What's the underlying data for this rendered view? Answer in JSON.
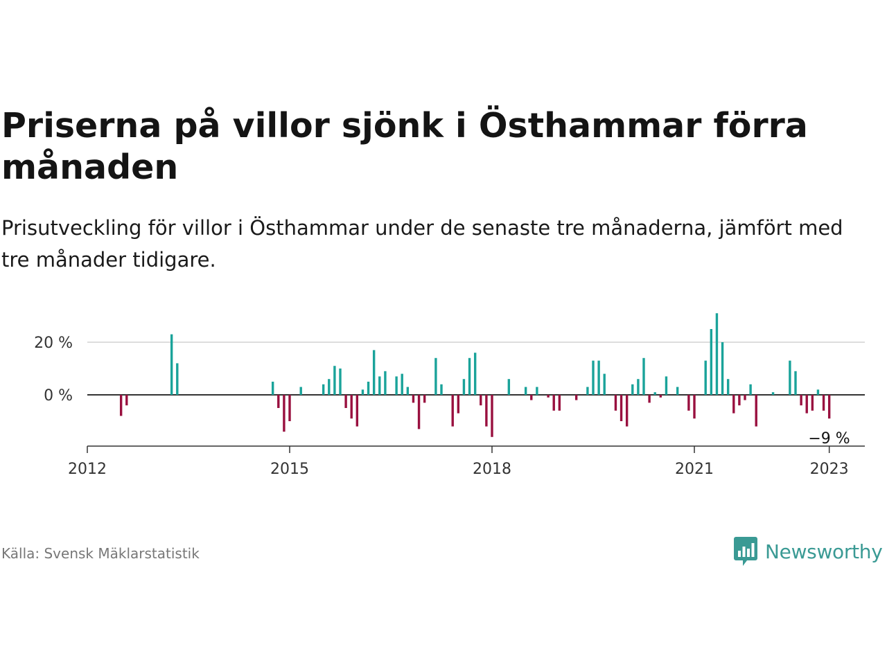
{
  "header": {
    "title": "Priserna på villor sjönk i Östhammar förra månaden",
    "subtitle": "Prisutveckling för villor i Östhammar under de senaste tre månaderna, jämfört med tre månader tidigare."
  },
  "footer": {
    "source": "Källa: Svensk Mäklarstatistik",
    "brand": "Newsworthy"
  },
  "colors": {
    "positive": "#1aa39a",
    "negative": "#99103f",
    "brand": "#3a9a94",
    "gridline": "#dddddd",
    "baseline": "#333333"
  },
  "chart_data": {
    "type": "bar",
    "title": "Priserna på villor sjönk i Östhammar förra månaden",
    "subtitle": "Prisutveckling för villor i Östhammar under de senaste tre månaderna, jämfört med tre månader tidigare.",
    "xlabel": "",
    "ylabel": "",
    "unit": "%",
    "x_ticks": [
      "2012",
      "2015",
      "2018",
      "2021",
      "2023"
    ],
    "y_ticks": [
      {
        "value": 20,
        "label": "20 %"
      },
      {
        "value": 0,
        "label": "0 %"
      }
    ],
    "ylim": [
      -19,
      30
    ],
    "grid": true,
    "annotation": {
      "date": "2023-01",
      "value": -9,
      "label": "−9 %"
    },
    "series": [
      {
        "values": [
          {
            "date": "2012-07",
            "value": -8
          },
          {
            "date": "2012-08",
            "value": -4
          },
          {
            "date": "2013-04",
            "value": 23
          },
          {
            "date": "2013-05",
            "value": 12
          },
          {
            "date": "2014-10",
            "value": 5
          },
          {
            "date": "2014-11",
            "value": -5
          },
          {
            "date": "2014-12",
            "value": -14
          },
          {
            "date": "2015-01",
            "value": -10
          },
          {
            "date": "2015-03",
            "value": 3
          },
          {
            "date": "2015-07",
            "value": 4
          },
          {
            "date": "2015-08",
            "value": 6
          },
          {
            "date": "2015-09",
            "value": 11
          },
          {
            "date": "2015-10",
            "value": 10
          },
          {
            "date": "2015-11",
            "value": -5
          },
          {
            "date": "2015-12",
            "value": -9
          },
          {
            "date": "2016-01",
            "value": -12
          },
          {
            "date": "2016-02",
            "value": 2
          },
          {
            "date": "2016-03",
            "value": 5
          },
          {
            "date": "2016-04",
            "value": 17
          },
          {
            "date": "2016-05",
            "value": 7
          },
          {
            "date": "2016-06",
            "value": 9
          },
          {
            "date": "2016-08",
            "value": 7
          },
          {
            "date": "2016-09",
            "value": 8
          },
          {
            "date": "2016-10",
            "value": 3
          },
          {
            "date": "2016-11",
            "value": -3
          },
          {
            "date": "2016-12",
            "value": -13
          },
          {
            "date": "2017-01",
            "value": -3
          },
          {
            "date": "2017-03",
            "value": 14
          },
          {
            "date": "2017-04",
            "value": 4
          },
          {
            "date": "2017-06",
            "value": -12
          },
          {
            "date": "2017-07",
            "value": -7
          },
          {
            "date": "2017-08",
            "value": 6
          },
          {
            "date": "2017-09",
            "value": 14
          },
          {
            "date": "2017-10",
            "value": 16
          },
          {
            "date": "2017-11",
            "value": -4
          },
          {
            "date": "2017-12",
            "value": -12
          },
          {
            "date": "2018-01",
            "value": -16
          },
          {
            "date": "2018-04",
            "value": 6
          },
          {
            "date": "2018-07",
            "value": 3
          },
          {
            "date": "2018-08",
            "value": -2
          },
          {
            "date": "2018-09",
            "value": 3
          },
          {
            "date": "2018-11",
            "value": -1
          },
          {
            "date": "2018-12",
            "value": -6
          },
          {
            "date": "2019-01",
            "value": -6
          },
          {
            "date": "2019-04",
            "value": -2
          },
          {
            "date": "2019-06",
            "value": 3
          },
          {
            "date": "2019-07",
            "value": 13
          },
          {
            "date": "2019-08",
            "value": 13
          },
          {
            "date": "2019-09",
            "value": 8
          },
          {
            "date": "2019-11",
            "value": -6
          },
          {
            "date": "2019-12",
            "value": -10
          },
          {
            "date": "2020-01",
            "value": -12
          },
          {
            "date": "2020-02",
            "value": 4
          },
          {
            "date": "2020-03",
            "value": 6
          },
          {
            "date": "2020-04",
            "value": 14
          },
          {
            "date": "2020-05",
            "value": -3
          },
          {
            "date": "2020-06",
            "value": 1
          },
          {
            "date": "2020-07",
            "value": -1
          },
          {
            "date": "2020-08",
            "value": 7
          },
          {
            "date": "2020-10",
            "value": 3
          },
          {
            "date": "2020-12",
            "value": -6
          },
          {
            "date": "2021-01",
            "value": -9
          },
          {
            "date": "2021-03",
            "value": 13
          },
          {
            "date": "2021-04",
            "value": 25
          },
          {
            "date": "2021-05",
            "value": 31
          },
          {
            "date": "2021-06",
            "value": 20
          },
          {
            "date": "2021-07",
            "value": 6
          },
          {
            "date": "2021-08",
            "value": -7
          },
          {
            "date": "2021-09",
            "value": -4
          },
          {
            "date": "2021-10",
            "value": -2
          },
          {
            "date": "2021-11",
            "value": 4
          },
          {
            "date": "2021-12",
            "value": -12
          },
          {
            "date": "2022-03",
            "value": 1
          },
          {
            "date": "2022-06",
            "value": 13
          },
          {
            "date": "2022-07",
            "value": 9
          },
          {
            "date": "2022-08",
            "value": -4
          },
          {
            "date": "2022-09",
            "value": -7
          },
          {
            "date": "2022-10",
            "value": -6
          },
          {
            "date": "2022-11",
            "value": 2
          },
          {
            "date": "2022-12",
            "value": -6
          },
          {
            "date": "2023-01",
            "value": -9
          }
        ]
      }
    ]
  }
}
